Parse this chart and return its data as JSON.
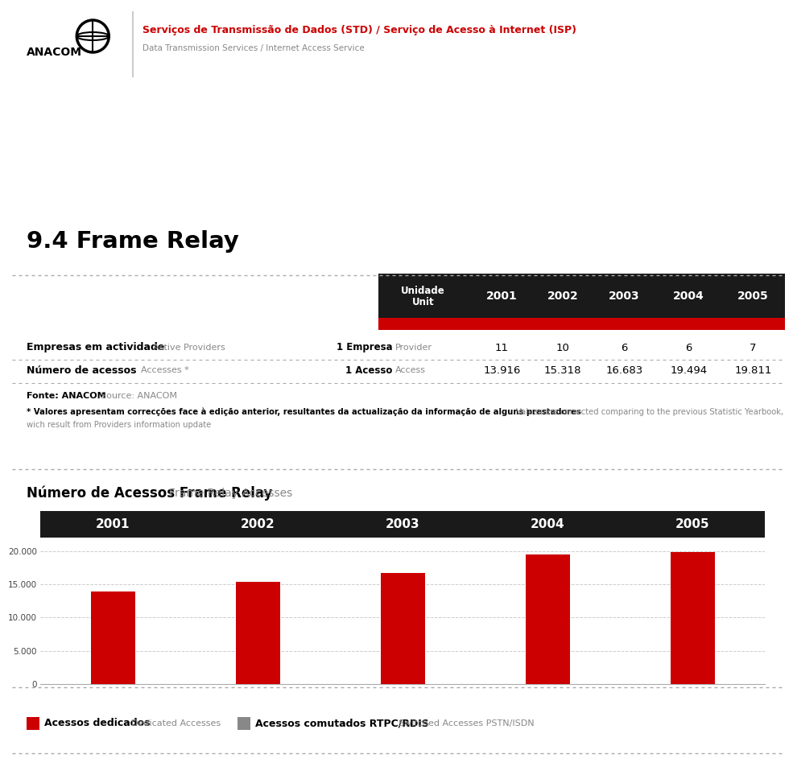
{
  "title_main": "Serviços de Transmissão de Dados (STD) / Serviço de Acesso à Internet (ISP)",
  "title_sub": "Data Transmission Services / Internet Access Service",
  "section_title": "9.4 Frame Relay",
  "table_header_years": [
    "2001",
    "2002",
    "2003",
    "2004",
    "2005"
  ],
  "row1_label_bold": "Empresas em actividade",
  "row1_label_light": "Active Providers",
  "row1_unit_bold": "1 Empresa",
  "row1_unit_light": "Provider",
  "row1_values": [
    "11",
    "10",
    "6",
    "6",
    "7"
  ],
  "row2_label_bold": "Número de acessos",
  "row2_label_light": "Accesses *",
  "row2_unit_bold": "1 Acesso",
  "row2_unit_light": "Access",
  "row2_values": [
    "13.916",
    "15.318",
    "16.683",
    "19.494",
    "19.811"
  ],
  "fonte_bold": "Fonte: ANACOM",
  "fonte_light": "Source: ANACOM",
  "note_bold": "* Valores apresentam correcções face à edição anterior, resultantes da actualização da informação de alguns prestadores",
  "note_light_1": "Values are corrected comparing to the previous Statistic Yearbook,",
  "note_light_2": "wich result from Providers information update",
  "chart_title_bold": "Número de Acessos Frame Relay",
  "chart_title_light": "Frame Relay Accesses",
  "chart_years": [
    "2001",
    "2002",
    "2003",
    "2004",
    "2005"
  ],
  "chart_values": [
    13916,
    15318,
    16683,
    19494,
    19811
  ],
  "chart_bar_color": "#cc0000",
  "chart_yticks": [
    0,
    5000,
    10000,
    15000,
    20000
  ],
  "chart_ytick_labels": [
    "0",
    "5.000",
    "10.000",
    "15.000",
    "20.000"
  ],
  "legend_red_bold": "Acessos dedicados",
  "legend_red_light": "Dedicated Accesses",
  "legend_gray_bold": "Acessos comutados RTPC/RDIS",
  "legend_gray_light": "Switched Accesses PSTN/ISDN",
  "bg_color": "#ffffff",
  "header_bg": "#1a1a1a",
  "red_color": "#cc0000",
  "gray_color": "#888888",
  "dash_color": "#aaaaaa",
  "text_dark": "#1a1a1a",
  "text_gray": "#888888"
}
